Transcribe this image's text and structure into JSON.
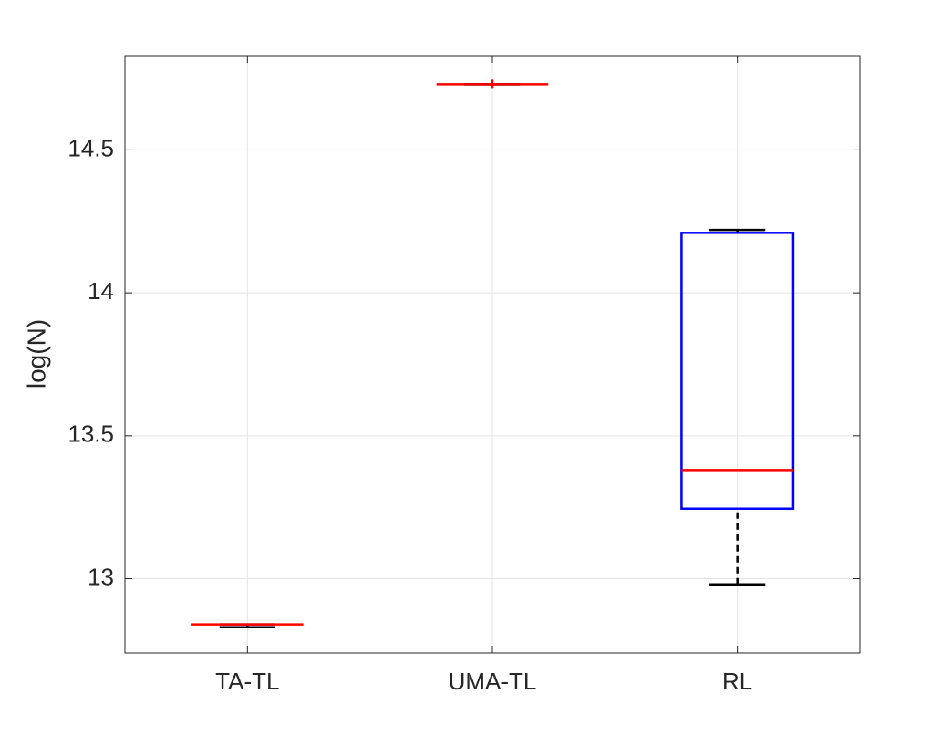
{
  "chart_data": {
    "type": "box",
    "ylabel": "log(N)",
    "categories": [
      "TA-TL",
      "UMA-TL",
      "RL"
    ],
    "boxes": [
      {
        "min": 12.83,
        "q1": 12.84,
        "median": 12.84,
        "q3": 12.84,
        "max": 12.84,
        "outliers": []
      },
      {
        "min": 14.73,
        "q1": 14.73,
        "median": 14.73,
        "q3": 14.73,
        "max": 14.73,
        "outliers": [
          14.73
        ]
      },
      {
        "min": 12.98,
        "q1": 13.245,
        "median": 13.38,
        "q3": 14.21,
        "max": 14.22,
        "outliers": []
      }
    ],
    "box_color": "#0000ff",
    "median_color": "#ff0000",
    "whisker_color": "#000000",
    "outlier_color": "#ff0000",
    "ylim": [
      12.74,
      14.83
    ],
    "yticks": [
      13,
      13.5,
      14,
      14.5
    ],
    "grid": true
  }
}
